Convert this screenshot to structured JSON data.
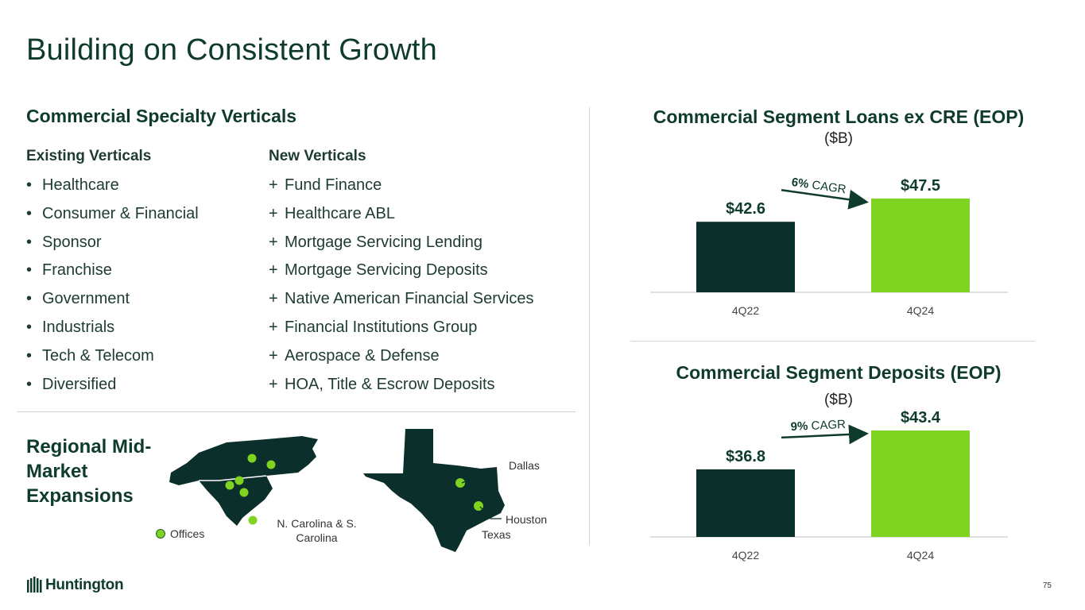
{
  "title": "Building on Consistent Growth",
  "verticals": {
    "heading": "Commercial Specialty Verticals",
    "existing_heading": "Existing Verticals",
    "existing_marker": "•",
    "existing": [
      "Healthcare",
      "Consumer & Financial",
      "Sponsor",
      "Franchise",
      "Government",
      "Industrials",
      "Tech & Telecom",
      "Diversified"
    ],
    "new_heading": "New Verticals",
    "new_marker": "+",
    "new": [
      "Fund Finance",
      "Healthcare ABL",
      "Mortgage Servicing Lending",
      "Mortgage Servicing Deposits",
      "Native American Financial Services",
      "Financial Institutions Group",
      "Aerospace & Defense",
      "HOA, Title & Escrow Deposits"
    ]
  },
  "regional": {
    "heading": "Regional Mid-Market Expansions",
    "legend": "Offices",
    "carolina_label": "N. Carolina & S. Carolina",
    "texas_label": "Texas",
    "dallas_label": "Dallas",
    "houston_label": "Houston"
  },
  "chart_data": [
    {
      "type": "bar",
      "title": "Commercial Segment Loans ex CRE (EOP)",
      "unit": "($B)",
      "categories": [
        "4Q22",
        "4Q24"
      ],
      "values": [
        42.6,
        47.5
      ],
      "value_labels": [
        "$42.6",
        "$47.5"
      ],
      "annotation_bold": "6%",
      "annotation_rest": "CAGR",
      "colors": [
        "#0b2f2a",
        "#7fd321"
      ]
    },
    {
      "type": "bar",
      "title": "Commercial Segment Deposits (EOP)",
      "unit": "($B)",
      "categories": [
        "4Q22",
        "4Q24"
      ],
      "values": [
        36.8,
        43.4
      ],
      "value_labels": [
        "$36.8",
        "$43.4"
      ],
      "annotation_bold": "9%",
      "annotation_rest": "CAGR",
      "colors": [
        "#0b2f2a",
        "#7fd321"
      ]
    }
  ],
  "footer": {
    "brand": "Huntington",
    "page": "75"
  }
}
